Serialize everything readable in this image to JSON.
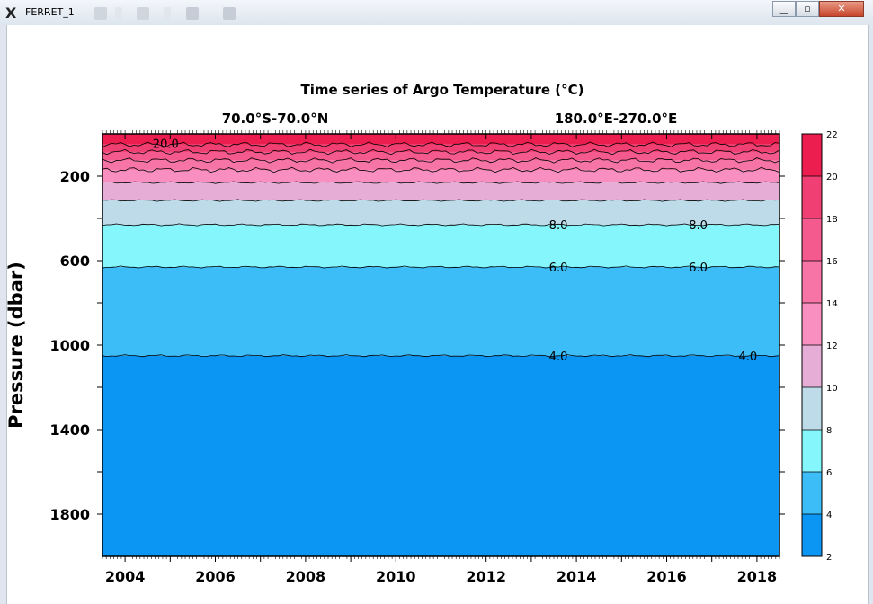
{
  "window": {
    "title": "FERRET_1",
    "app_icon": "x-logo-icon",
    "buttons": {
      "minimize": "minimize-icon",
      "maximize": "maximize-icon",
      "close": "close-icon"
    }
  },
  "chart_data": {
    "type": "heatmap",
    "title": "Time series of Argo Temperature (°C)",
    "subtitle_left": "70.0°S-70.0°N",
    "subtitle_right": "180.0°E-270.0°E",
    "xlabel": "",
    "ylabel": "Pressure (dbar)",
    "xlim": [
      2003.5,
      2018.5
    ],
    "ylim": [
      2000,
      0
    ],
    "x_ticks": [
      2004,
      2006,
      2008,
      2010,
      2012,
      2014,
      2016,
      2018
    ],
    "y_ticks": [
      200,
      600,
      1000,
      1400,
      1800
    ],
    "colorbar": {
      "levels": [
        2,
        4,
        6,
        8,
        10,
        12,
        14,
        16,
        18,
        20,
        22
      ],
      "colors": [
        "#0b96f4",
        "#3cbdf7",
        "#84f6fc",
        "#bddbe9",
        "#e6aed6",
        "#f98fc1",
        "#f774a7",
        "#f45a8d",
        "#f03f73",
        "#ec1d4f"
      ]
    },
    "isotherm_depths": [
      {
        "temp": 4,
        "pressure": 1050
      },
      {
        "temp": 6,
        "pressure": 630
      },
      {
        "temp": 8,
        "pressure": 430
      },
      {
        "temp": 10,
        "pressure": 315
      },
      {
        "temp": 12,
        "pressure": 230
      },
      {
        "temp": 14,
        "pressure": 170
      },
      {
        "temp": 16,
        "pressure": 125
      },
      {
        "temp": 18,
        "pressure": 85
      },
      {
        "temp": 20,
        "pressure": 50
      },
      {
        "temp": 22,
        "pressure": 0
      }
    ],
    "contour_labels": [
      {
        "text": "20.0",
        "x": 2004.9,
        "pressure": 45
      },
      {
        "text": "8.0",
        "x": 2013.6,
        "pressure": 430
      },
      {
        "text": "8.0",
        "x": 2016.7,
        "pressure": 430
      },
      {
        "text": "6.0",
        "x": 2013.6,
        "pressure": 630
      },
      {
        "text": "6.0",
        "x": 2016.7,
        "pressure": 630
      },
      {
        "text": "4.0",
        "x": 2013.6,
        "pressure": 1050
      },
      {
        "text": "4.0",
        "x": 2017.8,
        "pressure": 1050
      }
    ]
  }
}
